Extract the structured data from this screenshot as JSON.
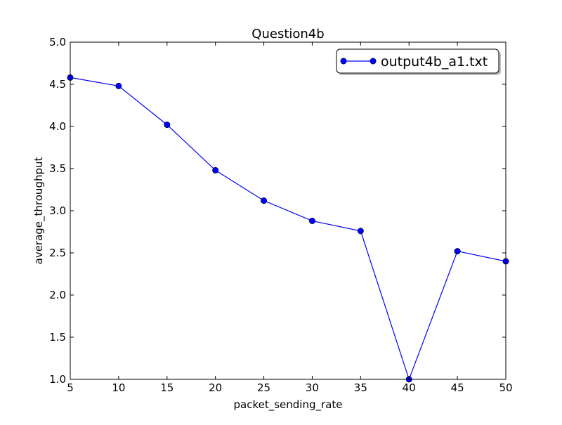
{
  "chart_data": {
    "type": "line",
    "title": "Question4b",
    "xlabel": "packet_sending_rate",
    "ylabel": "average_throughput",
    "xlim": [
      5,
      50
    ],
    "ylim": [
      1.0,
      5.0
    ],
    "xticks": [
      5,
      10,
      15,
      20,
      25,
      30,
      35,
      40,
      45,
      50
    ],
    "xtick_labels": [
      "5",
      "10",
      "15",
      "20",
      "25",
      "30",
      "35",
      "40",
      "45",
      "50"
    ],
    "yticks": [
      1.0,
      1.5,
      2.0,
      2.5,
      3.0,
      3.5,
      4.0,
      4.5,
      5.0
    ],
    "ytick_labels": [
      "1.0",
      "1.5",
      "2.0",
      "2.5",
      "3.0",
      "3.5",
      "4.0",
      "4.5",
      "5.0"
    ],
    "grid": false,
    "legend_position": "top-right",
    "series": [
      {
        "name": "output4b_a1.txt",
        "color": "#0000ff",
        "marker": "circle",
        "x": [
          5,
          10,
          15,
          20,
          25,
          30,
          35,
          40,
          45,
          50
        ],
        "y": [
          4.58,
          4.48,
          4.02,
          3.48,
          3.12,
          2.88,
          2.76,
          1.0,
          2.52,
          2.4
        ]
      }
    ]
  }
}
